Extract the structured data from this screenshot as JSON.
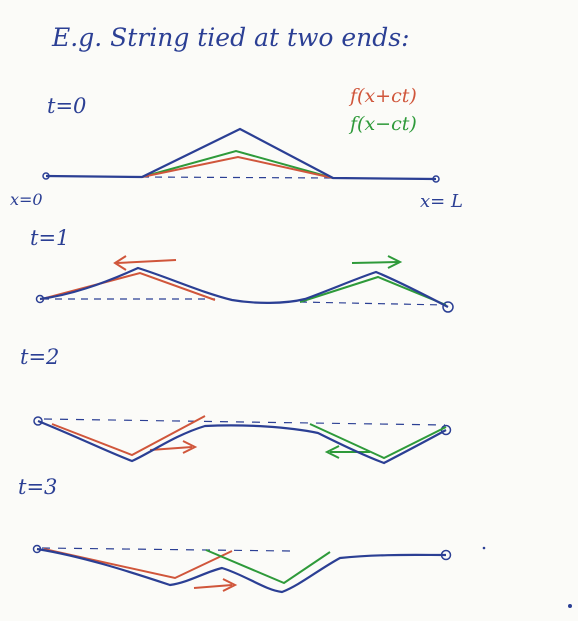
{
  "heading": "E.g. String tied at two ends:",
  "legend": {
    "forward": {
      "label": "f(x+ct)",
      "color": "#d0563b"
    },
    "backward": {
      "label": "f(x−ct)",
      "color": "#2e9a3a"
    }
  },
  "colors": {
    "string": "#2b3f94",
    "dashed": "#2b3f94"
  },
  "panels": [
    {
      "time_label": "t=0",
      "left_label": "x=0",
      "right_label": "x= L"
    },
    {
      "time_label": "t=1"
    },
    {
      "time_label": "t=2"
    },
    {
      "time_label": "t=3"
    }
  ]
}
